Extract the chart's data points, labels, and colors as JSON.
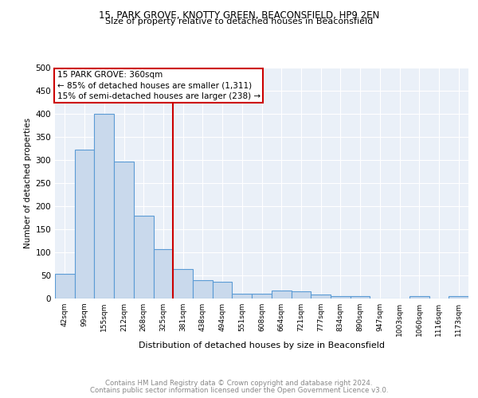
{
  "title1": "15, PARK GROVE, KNOTTY GREEN, BEACONSFIELD, HP9 2EN",
  "title2": "Size of property relative to detached houses in Beaconsfield",
  "xlabel": "Distribution of detached houses by size in Beaconsfield",
  "ylabel": "Number of detached properties",
  "categories": [
    "42sqm",
    "99sqm",
    "155sqm",
    "212sqm",
    "268sqm",
    "325sqm",
    "381sqm",
    "438sqm",
    "494sqm",
    "551sqm",
    "608sqm",
    "664sqm",
    "721sqm",
    "777sqm",
    "834sqm",
    "890sqm",
    "947sqm",
    "1003sqm",
    "1060sqm",
    "1116sqm",
    "1173sqm"
  ],
  "values": [
    54,
    322,
    400,
    297,
    179,
    107,
    64,
    40,
    36,
    11,
    11,
    17,
    16,
    9,
    6,
    5,
    0,
    0,
    5,
    0,
    5
  ],
  "bar_color": "#c9d9ec",
  "bar_edge_color": "#5b9bd5",
  "vline_x": 5.5,
  "vline_color": "#cc0000",
  "annotation_title": "15 PARK GROVE: 360sqm",
  "annotation_line1": "← 85% of detached houses are smaller (1,311)",
  "annotation_line2": "15% of semi-detached houses are larger (238) →",
  "annotation_box_color": "#cc0000",
  "ylim": [
    0,
    500
  ],
  "yticks": [
    0,
    50,
    100,
    150,
    200,
    250,
    300,
    350,
    400,
    450,
    500
  ],
  "footer1": "Contains HM Land Registry data © Crown copyright and database right 2024.",
  "footer2": "Contains public sector information licensed under the Open Government Licence v3.0.",
  "bg_color": "#eaf0f8"
}
